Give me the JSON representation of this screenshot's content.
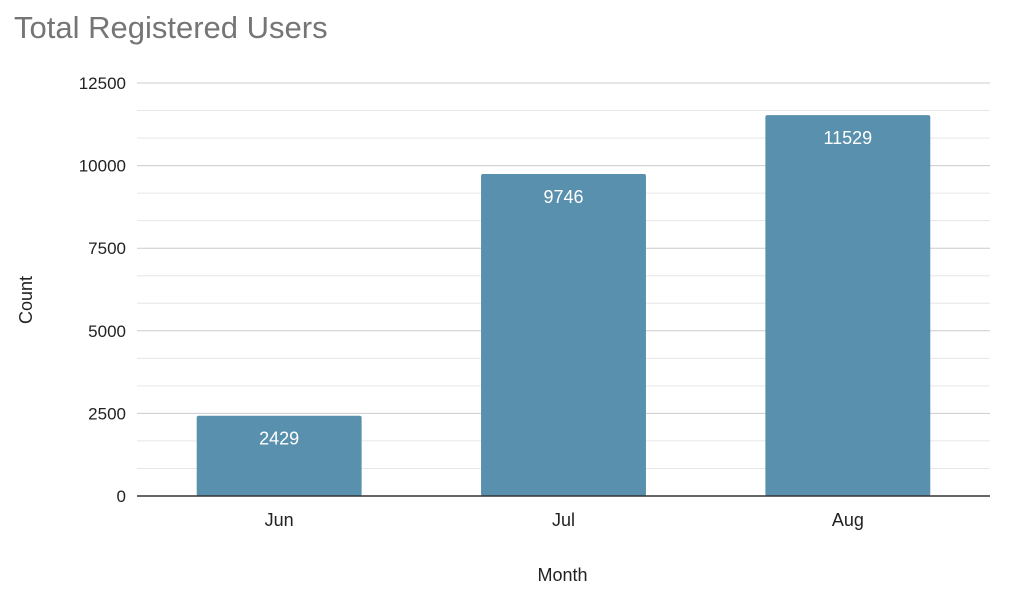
{
  "chart_data": {
    "type": "bar",
    "title": "Total Registered Users",
    "xlabel": "Month",
    "ylabel": "Count",
    "categories": [
      "Jun",
      "Jul",
      "Aug"
    ],
    "values": [
      2429,
      9746,
      11529
    ],
    "data_labels": [
      "2429",
      "9746",
      "11529"
    ],
    "ylim": [
      0,
      12500
    ],
    "yticks": [
      0,
      2500,
      5000,
      7500,
      10000,
      12500
    ],
    "ytick_labels": [
      "0",
      "2500",
      "5000",
      "7500",
      "10000",
      "12500"
    ],
    "minor_gridlines": true,
    "grid": true,
    "legend": "none",
    "colors": {
      "bar": "#5990ad",
      "bar_label": "#ffffff",
      "major_grid": "#cccccc",
      "minor_grid": "#e6e6e6",
      "axis": "#333333",
      "title": "#757575",
      "text": "#222222"
    }
  }
}
